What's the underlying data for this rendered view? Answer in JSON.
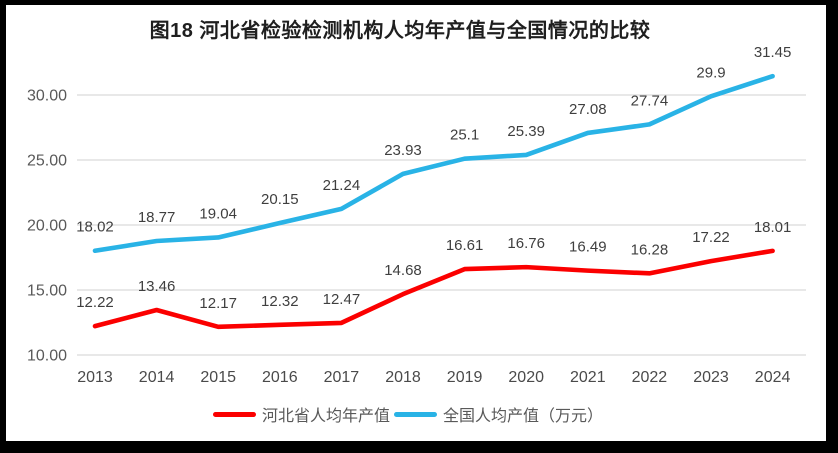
{
  "frame": {
    "border_color": "#000000",
    "background": "#ffffff"
  },
  "chart_data": {
    "type": "line",
    "title": "图18 河北省检验检测机构人均年产值与全国情况的比较",
    "categories": [
      "2013",
      "2014",
      "2015",
      "2016",
      "2017",
      "2018",
      "2019",
      "2020",
      "2021",
      "2022",
      "2023",
      "2024"
    ],
    "series": [
      {
        "name": "河北省人均年产值",
        "color": "#fb0000",
        "values": [
          12.22,
          13.46,
          12.17,
          12.32,
          12.47,
          14.68,
          16.61,
          16.76,
          16.49,
          16.28,
          17.22,
          18.01
        ],
        "labels": [
          "12.22",
          "13.46",
          "12.17",
          "12.32",
          "12.47",
          "14.68",
          "16.61",
          "16.76",
          "16.49",
          "16.28",
          "17.22",
          "18.01"
        ]
      },
      {
        "name": "全国人均产值（万元）",
        "color": "#29b3e6",
        "values": [
          18.02,
          18.77,
          19.04,
          20.15,
          21.24,
          23.93,
          25.1,
          25.39,
          27.08,
          27.74,
          29.9,
          31.45
        ],
        "labels": [
          "18.02",
          "18.77",
          "19.04",
          "20.15",
          "21.24",
          "23.93",
          "25.1",
          "25.39",
          "27.08",
          "27.74",
          "29.9",
          "31.45"
        ]
      }
    ],
    "y_ticks": [
      "10.00",
      "15.00",
      "20.00",
      "25.00",
      "30.00"
    ],
    "ylim": [
      10,
      33
    ],
    "xlabel": "",
    "ylabel": "",
    "grid": true,
    "legend_position": "bottom",
    "colors": {
      "gridline": "#d9d9d9",
      "tick_label": "#595959",
      "x_label": "#4a4a4a",
      "data_label": "#3f3f3f",
      "title": "#1f1f1f"
    }
  }
}
